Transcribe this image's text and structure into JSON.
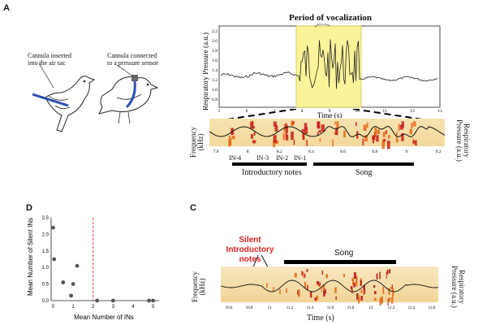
{
  "panels": {
    "a": "A",
    "b": "C",
    "d": "D"
  },
  "bird_left": {
    "label_line1": "Cannula inserted",
    "label_line2": "into the air sac"
  },
  "bird_right": {
    "label_line1": "Cannula connected",
    "label_line2": "to a pressure sensor"
  },
  "pressure_trace": {
    "title": "Period of vocalization",
    "ylabel": "Respiratory Pressure (a.u.)",
    "xlabel": "Time (s)",
    "yticks": [
      "2.2",
      "2.0",
      "1.8",
      "1.6",
      "1.4",
      "1.2",
      "1.0",
      "0.8"
    ],
    "xticks": [
      "5",
      "6",
      "7",
      "8",
      "9",
      "10",
      "11",
      "12",
      "13"
    ]
  },
  "spectrogram_a": {
    "ylabel_left_line1": "Frequency",
    "ylabel_left_line2": "(kHz)",
    "ylabel_right_line1": "Respiratory",
    "ylabel_right_line2": "Pressure (a.u.)",
    "xticks": [
      "7.8",
      "8",
      "8.2",
      "8.4",
      "8.6",
      "8.8",
      "9",
      "9.2"
    ],
    "note_labels": [
      "IN-4",
      "IN-3",
      "IN-2",
      "IN-1"
    ],
    "intro_label": "Introductory notes",
    "song_label": "Song"
  },
  "chart_data": {
    "type": "scatter",
    "xlabel": "Mean Number of INs",
    "ylabel": "Mean Number of Silent INs",
    "xlim": [
      -0.1,
      5.3
    ],
    "ylim": [
      0,
      2.5
    ],
    "xticks": [
      "0",
      "1",
      "2",
      "3",
      "4",
      "5"
    ],
    "yticks": [
      "2.5",
      "2.0",
      "1.5",
      "1.0",
      "0.5",
      "0.0"
    ],
    "threshold_x": 2,
    "points": [
      {
        "x": 0.0,
        "y": 2.2
      },
      {
        "x": 0.05,
        "y": 1.25
      },
      {
        "x": 0.5,
        "y": 0.55
      },
      {
        "x": 0.9,
        "y": 0.15
      },
      {
        "x": 1.0,
        "y": 0.5
      },
      {
        "x": 1.2,
        "y": 1.05
      },
      {
        "x": 2.2,
        "y": 0.0
      },
      {
        "x": 3.0,
        "y": 0.0
      },
      {
        "x": 4.8,
        "y": 0.0
      },
      {
        "x": 5.0,
        "y": 0.0
      }
    ]
  },
  "spectrogram_c": {
    "silent_label_line1": "Silent",
    "silent_label_line2": "Introductory notes",
    "song_label": "Song",
    "ylabel_left_line1": "Frequency",
    "ylabel_left_line2": "(kHz)",
    "ylabel_right_line1": "Respiratory",
    "ylabel_right_line2": "Pressure (a.u.)",
    "xlabel": "Time (s)",
    "xticks": [
      "10.6",
      "10.8",
      "11",
      "11.2",
      "11.4",
      "11.6",
      "11.8",
      "12",
      "12.2",
      "12.4",
      "12.6"
    ]
  }
}
